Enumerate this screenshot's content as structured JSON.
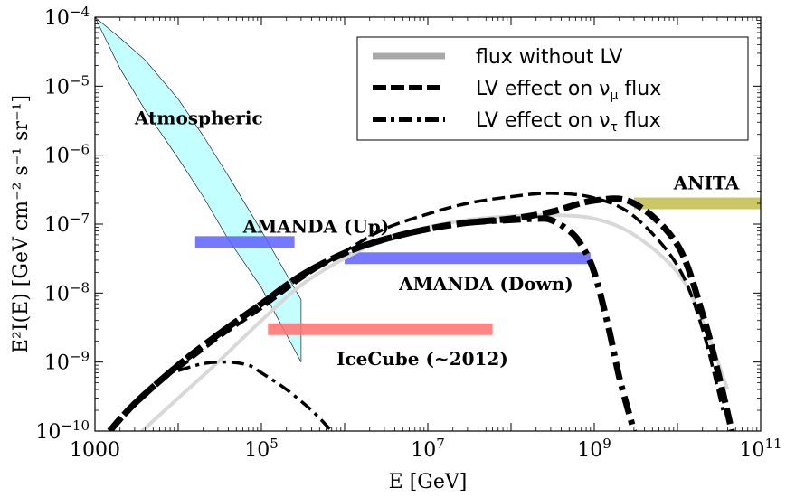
{
  "chart_data": {
    "type": "line",
    "xscale": "log",
    "yscale": "log",
    "xlim": [
      1000,
      100000000000
    ],
    "ylim": [
      1e-10,
      0.0001
    ],
    "xlabel": "E [GeV]",
    "ylabel": "E²I(E)  [GeV cm⁻² s⁻¹ sr⁻¹]",
    "grid": false,
    "legend_position": "top-right",
    "x_ticks": [
      {
        "value": 1000,
        "base": "1000",
        "exp": ""
      },
      {
        "value": 100000,
        "base": "10",
        "exp": "5"
      },
      {
        "value": 10000000,
        "base": "10",
        "exp": "7"
      },
      {
        "value": 1000000000,
        "base": "10",
        "exp": "9"
      },
      {
        "value": 100000000000,
        "base": "10",
        "exp": "11"
      }
    ],
    "y_ticks": [
      {
        "value": 0.0001,
        "base": "10",
        "exp": "−4"
      },
      {
        "value": 1e-05,
        "base": "10",
        "exp": "−5"
      },
      {
        "value": 1e-06,
        "base": "10",
        "exp": "−6"
      },
      {
        "value": 1e-07,
        "base": "10",
        "exp": "−7"
      },
      {
        "value": 1e-08,
        "base": "10",
        "exp": "−8"
      },
      {
        "value": 1e-09,
        "base": "10",
        "exp": "−9"
      },
      {
        "value": 1e-10,
        "base": "10",
        "exp": "−10"
      }
    ],
    "legend": [
      {
        "label": "flux without LV",
        "style": "solid",
        "color": "#a0a0a0"
      },
      {
        "label": "LV effect on  ν",
        "sub": "μ",
        "suffix": "  flux",
        "style": "dashed",
        "color": "#000000"
      },
      {
        "label": "LV effect on  ν",
        "sub": "τ",
        "suffix": "  flux",
        "style": "dashdot",
        "color": "#000000"
      }
    ],
    "series": [
      {
        "name": "flux without LV",
        "style": "solid-gray",
        "x": [
          1000,
          3000,
          10000,
          30000,
          100000,
          300000,
          1000000,
          3000000,
          10000000,
          30000000,
          100000000,
          300000000,
          1000000000,
          3000000000,
          10000000000,
          20000000000,
          40000000000
        ],
        "y": [
          2.5e-11,
          8e-11,
          3e-10,
          1e-09,
          4e-09,
          1.3e-08,
          3.2e-08,
          6e-08,
          9e-08,
          1.15e-07,
          1.3e-07,
          1.35e-07,
          1.2e-07,
          7e-08,
          2e-08,
          4e-09,
          4e-10
        ]
      },
      {
        "name": "LV effect on ν_μ flux (thin)",
        "style": "dashed-thin",
        "x": [
          10000,
          30000,
          100000,
          300000,
          1000000,
          3000000,
          10000000,
          30000000,
          100000000,
          300000000,
          1000000000,
          3000000000,
          10000000000,
          20000000000,
          35000000000
        ],
        "y": [
          8e-10,
          2.2e-09,
          6e-09,
          1.6e-08,
          4e-08,
          8.5e-08,
          1.4e-07,
          2e-07,
          2.5e-07,
          2.8e-07,
          2.4e-07,
          1.3e-07,
          2.5e-08,
          3e-09,
          2e-10
        ]
      },
      {
        "name": "LV effect on ν_μ flux",
        "style": "dashed-thick",
        "x": [
          1500,
          3000,
          10000,
          30000,
          100000,
          300000,
          1000000,
          3000000,
          10000000,
          30000000,
          100000000,
          300000000,
          1000000000,
          3000000000,
          10000000000,
          20000000000,
          30000000000,
          45000000000
        ],
        "y": [
          1e-10,
          2.5e-10,
          9e-10,
          2.5e-09,
          7e-09,
          1.8e-08,
          3.8e-08,
          6e-08,
          8.5e-08,
          1.05e-07,
          1.2e-07,
          1.5e-07,
          2.2e-07,
          2e-07,
          5e-08,
          5e-09,
          8e-10,
          1e-10
        ]
      },
      {
        "name": "LV effect on ν_τ flux",
        "style": "dashdot-thick",
        "x": [
          1500,
          3000,
          10000,
          30000,
          100000,
          300000,
          1000000,
          3000000,
          10000000,
          30000000,
          100000000,
          200000000,
          300000000,
          500000000,
          700000000,
          1000000000,
          1500000000,
          2000000000,
          3000000000
        ],
        "y": [
          1e-10,
          2.5e-10,
          9e-10,
          2.5e-09,
          7e-09,
          1.8e-08,
          3.8e-08,
          6e-08,
          8.5e-08,
          1.05e-07,
          1.15e-07,
          1.2e-07,
          1.15e-07,
          8e-08,
          5e-08,
          2e-08,
          3e-09,
          6e-10,
          1e-10
        ]
      },
      {
        "name": "LV effect on ν_τ flux (thin)",
        "style": "dashdot-thin",
        "x": [
          10000,
          20000,
          40000,
          70000,
          100000,
          200000,
          400000,
          700000
        ],
        "y": [
          7.5e-10,
          9.5e-10,
          1e-09,
          9e-10,
          7e-10,
          4e-10,
          2e-10,
          1e-10
        ]
      }
    ],
    "bands": [
      {
        "label": "Atmospheric",
        "color": "#aaffff",
        "upper": {
          "x": [
            1000,
            2000,
            4000,
            10000,
            20000,
            40000,
            100000,
            300000
          ],
          "y": [
            0.0001,
            5e-05,
            2.4e-05,
            6.5e-06,
            1.9e-06,
            5e-07,
            8e-08,
            8e-09
          ]
        },
        "lower": {
          "x": [
            1000,
            2000,
            4000,
            10000,
            20000,
            40000,
            100000,
            300000
          ],
          "y": [
            0.0001,
            1.8e-05,
            4.5e-06,
            9e-07,
            2.5e-07,
            6e-08,
            1.2e-08,
            1e-09
          ]
        }
      },
      {
        "label": "AMANDA (Up)",
        "color": "#5e60ff",
        "x": [
          16000,
          250000
        ],
        "y": 5.5e-08
      },
      {
        "label": "AMANDA (Down)",
        "color": "#5e60ff",
        "x": [
          1000000,
          900000000
        ],
        "y": 3.2e-08
      },
      {
        "label": "IceCube (~2012)",
        "color": "#ff7070",
        "x": [
          120000,
          60000000
        ],
        "y": 3e-09
      },
      {
        "label": "ANITA",
        "color": "#c2bd4a",
        "x": [
          3000000000,
          100000000000
        ],
        "y": 2e-07
      }
    ],
    "annotations": [
      {
        "text": "Atmospheric",
        "x": 3000,
        "y": 2.8e-06
      },
      {
        "text": "AMANDA (Up)",
        "x": 60000,
        "y": 7.5e-08
      },
      {
        "text": "AMANDA (Down)",
        "x": 4500000,
        "y": 1.1e-08
      },
      {
        "text": "IceCube (~2012)",
        "x": 800000,
        "y": 9e-10
      },
      {
        "text": "ANITA",
        "x": 9000000000,
        "y": 3.2e-07
      }
    ]
  }
}
